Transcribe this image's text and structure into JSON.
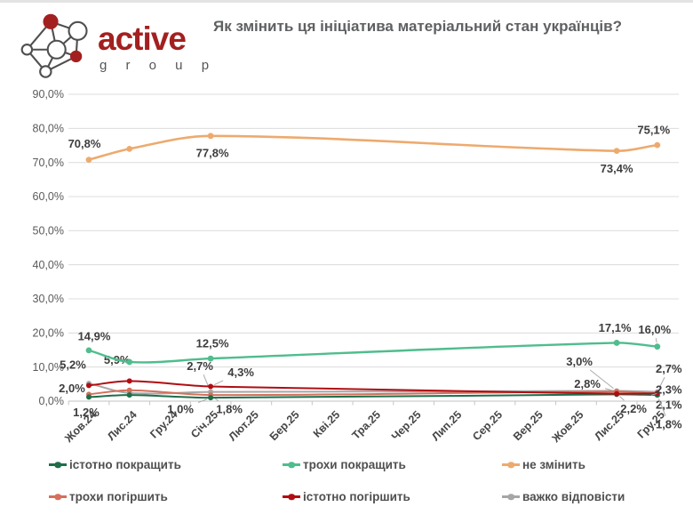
{
  "brand": {
    "name": "active",
    "subname": "g r o u p",
    "brand_color": "#a32020",
    "icon": "network-graph-icon"
  },
  "title": "Як змінить ця ініціатива матеріальний стан українців?",
  "chart_data": {
    "type": "line",
    "title": "Як змінить ця ініціатива матеріальний стан українців?",
    "x_categories": [
      "Жов.24",
      "Лис.24",
      "Гру.24",
      "Січ.25",
      "Лют.25",
      "Бер.25",
      "Кві.25",
      "Тра.25",
      "Чер.25",
      "Лип.25",
      "Сер.25",
      "Вер.25",
      "Жов.25",
      "Лис.25",
      "Гру.25"
    ],
    "y_tick_labels": [
      "0,0%",
      "10,0%",
      "20,0%",
      "30,0%",
      "40,0%",
      "50,0%",
      "60,0%",
      "70,0%",
      "80,0%",
      "90,0%"
    ],
    "ylim": [
      0,
      90
    ],
    "grid": "horizontal",
    "legend_position": "bottom",
    "data_month_indices": [
      0,
      1,
      3,
      13,
      14
    ],
    "series": [
      {
        "name": "важко відповісти",
        "color": "#a6a6a6",
        "width": 2,
        "values": [
          5.2,
          2.4,
          2.7,
          3.0,
          2.7
        ],
        "labels": [
          {
            "e": 0,
            "text": "5,2%",
            "dx": -18,
            "dy": -21
          },
          {
            "e": 2,
            "text": "2,7%",
            "dx": -12,
            "dy": -29,
            "leader": true
          },
          {
            "e": 3,
            "text": "3,0%",
            "dx": -42,
            "dy": -33,
            "leader": true
          },
          {
            "e": 4,
            "text": "2,7%",
            "dx": 13,
            "dy": -26,
            "leader": true
          }
        ]
      },
      {
        "name": "трохи погіршить",
        "color": "#d4705c",
        "width": 2,
        "values": [
          2.0,
          3.2,
          1.8,
          2.8,
          2.1
        ],
        "labels": [
          {
            "e": 0,
            "text": "2,0%",
            "dx": -19,
            "dy": -7
          },
          {
            "e": 2,
            "text": "1,8%",
            "dx": 21,
            "dy": 16,
            "leader": true
          },
          {
            "e": 3,
            "text": "2,8%",
            "dx": -33,
            "dy": -9,
            "leader": true
          },
          {
            "e": 4,
            "text": "2,1%",
            "dx": 13,
            "dy": 12,
            "leader": true
          }
        ]
      },
      {
        "name": "істотно покращить",
        "color": "#1e6f4a",
        "width": 2,
        "values": [
          1.2,
          1.8,
          1.0,
          2.0,
          1.8
        ],
        "labels": [
          {
            "e": 0,
            "text": "1,2%",
            "dx": -3,
            "dy": 17
          },
          {
            "e": 2,
            "text": "1,0%",
            "dx": -34,
            "dy": 13,
            "leader": true
          },
          {
            "e": 4,
            "text": "1,8%",
            "dx": 13,
            "dy": 33,
            "leader": true
          }
        ]
      },
      {
        "name": "істотно погіршить",
        "color": "#b00d12",
        "width": 2,
        "values": [
          4.6,
          5.9,
          4.3,
          2.2,
          2.3
        ],
        "labels": [
          {
            "e": 1,
            "text": "5,9%",
            "dx": -14,
            "dy": -24
          },
          {
            "e": 2,
            "text": "4,3%",
            "dx": 34,
            "dy": -16,
            "leader": true
          },
          {
            "e": 3,
            "text": "2,2%",
            "dx": 19,
            "dy": 17,
            "leader": true
          },
          {
            "e": 4,
            "text": "2,3%",
            "dx": 13,
            "dy": -4,
            "leader": true
          }
        ]
      },
      {
        "name": "трохи покращить",
        "color": "#4fbd8d",
        "width": 2.4,
        "values": [
          14.9,
          11.5,
          12.5,
          17.1,
          16.0
        ],
        "labels": [
          {
            "e": 0,
            "text": "14,9%",
            "dx": 6,
            "dy": -16
          },
          {
            "e": 2,
            "text": "12,5%",
            "dx": 2,
            "dy": -17
          },
          {
            "e": 3,
            "text": "17,1%",
            "dx": -2,
            "dy": -17
          },
          {
            "e": 4,
            "text": "16,0%",
            "dx": -3,
            "dy": -19,
            "leader": true
          }
        ]
      },
      {
        "name": "не змінить",
        "color": "#edaa6e",
        "width": 2.6,
        "values": [
          70.8,
          74.0,
          77.8,
          73.4,
          75.1
        ],
        "labels": [
          {
            "e": 0,
            "text": "70,8%",
            "dx": -5,
            "dy": -18
          },
          {
            "e": 2,
            "text": "77,8%",
            "dx": 2,
            "dy": 19
          },
          {
            "e": 3,
            "text": "73,4%",
            "dx": 0,
            "dy": 20
          },
          {
            "e": 4,
            "text": "75,1%",
            "dx": -4,
            "dy": -17
          }
        ]
      }
    ],
    "legend": [
      {
        "label": "істотно покращить",
        "color": "#1e6f4a"
      },
      {
        "label": "трохи покращить",
        "color": "#4fbd8d"
      },
      {
        "label": "не змінить",
        "color": "#edaa6e"
      },
      {
        "label": "трохи погіршить",
        "color": "#d4705c"
      },
      {
        "label": "істотно погіршить",
        "color": "#b00d12"
      },
      {
        "label": "важко відповісти",
        "color": "#a6a6a6"
      }
    ]
  }
}
